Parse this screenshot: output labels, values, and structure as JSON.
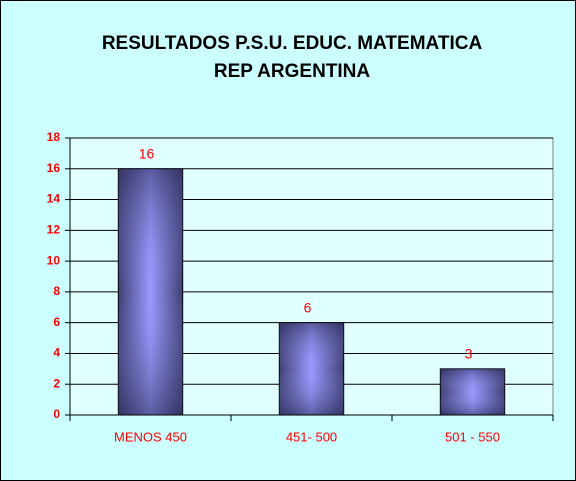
{
  "chart_data": {
    "type": "bar",
    "title": [
      "RESULTADOS P.S.U. EDUC. MATEMATICA",
      "REP ARGENTINA"
    ],
    "categories": [
      "MENOS 450",
      "451- 500",
      "501 - 550"
    ],
    "values": [
      16,
      6,
      3
    ],
    "ylim": [
      0,
      18
    ],
    "yticks": [
      0,
      2,
      4,
      6,
      8,
      10,
      12,
      14,
      16,
      18
    ],
    "grid": true
  }
}
